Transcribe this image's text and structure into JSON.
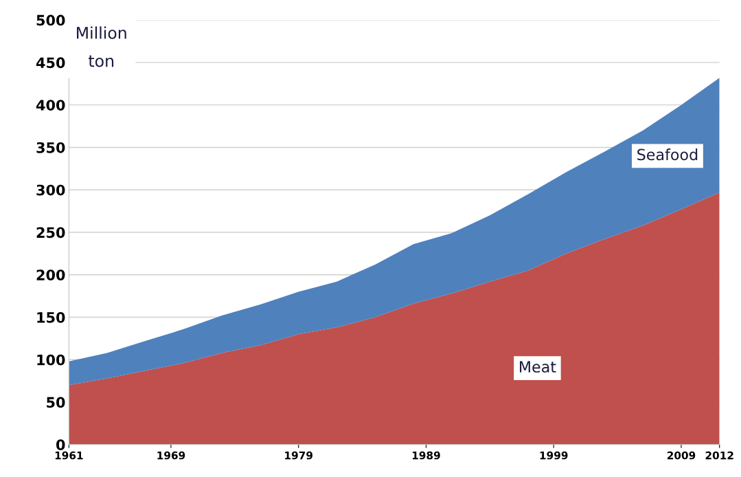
{
  "chart_data": {
    "type": "area",
    "stacked": true,
    "ylabel": "Million ton",
    "x": [
      1961,
      1964,
      1967,
      1970,
      1973,
      1976,
      1979,
      1982,
      1985,
      1988,
      1991,
      1994,
      1997,
      2000,
      2003,
      2006,
      2009,
      2012
    ],
    "series": [
      {
        "name": "Meat",
        "color": "#c0504d",
        "values": [
          70,
          78,
          87,
          96,
          108,
          117,
          130,
          138,
          150,
          166,
          178,
          192,
          205,
          225,
          242,
          258,
          277,
          297
        ]
      },
      {
        "name": "Seafood",
        "color": "#4f81bd",
        "values": [
          28,
          30,
          35,
          40,
          44,
          48,
          50,
          54,
          62,
          70,
          71,
          78,
          90,
          96,
          103,
          112,
          123,
          135
        ]
      }
    ],
    "xlim": [
      1961,
      2012
    ],
    "xticks": [
      1961,
      1969,
      1979,
      1989,
      1999,
      2009,
      2012
    ],
    "ylim": [
      0,
      500
    ],
    "yticks": [
      0,
      50,
      100,
      150,
      200,
      250,
      300,
      350,
      400,
      450,
      500
    ],
    "grid": "y",
    "legend": false
  }
}
